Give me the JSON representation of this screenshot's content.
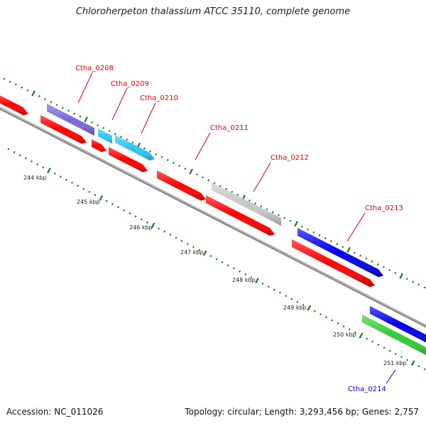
{
  "title": "Chloroherpeton thalassium ATCC 35110, complete genome",
  "footer": {
    "accession": "Accession: NC_011026",
    "summary": "Topology: circular; Length: 3,293,456 bp; Genes: 2,757"
  },
  "colors": {
    "red": "#ff0000",
    "purple": "#7a68d8",
    "cyan": "#2ec6f2",
    "grey": "#c8c8c8",
    "blue": "#0000ee",
    "green": "#33cc33",
    "backbone": "#8a8a8a",
    "tick": "#1d7a1d",
    "label_red": "#dd0000",
    "label_blue": "#0000cc"
  },
  "gene_labels": [
    {
      "name": "Ctha_0208",
      "color": "label_red"
    },
    {
      "name": "Ctha_0209",
      "color": "label_red"
    },
    {
      "name": "Ctha_0210",
      "color": "label_red"
    },
    {
      "name": "Ctha_0211",
      "color": "label_red"
    },
    {
      "name": "Ctha_0212",
      "color": "label_red"
    },
    {
      "name": "Ctha_0213",
      "color": "label_red"
    },
    {
      "name": "Ctha_0214",
      "color": "label_blue"
    }
  ],
  "kbp_labels": [
    "244 kbp",
    "245 kbp",
    "246 kbp",
    "247 kbp",
    "248 kbp",
    "249 kbp",
    "250 kbp",
    "251 kbp"
  ]
}
